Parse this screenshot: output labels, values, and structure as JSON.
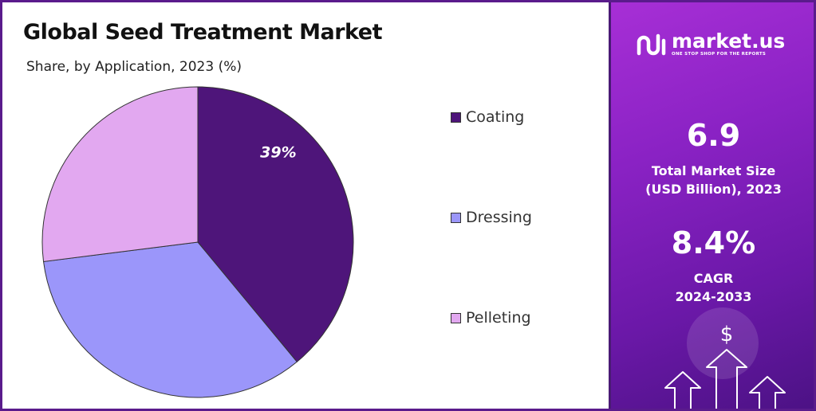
{
  "chart_data": {
    "type": "pie",
    "title": "Global Seed Treatment Market",
    "subtitle": "Share, by Application, 2023 (%)",
    "categories": [
      "Coating",
      "Dressing",
      "Pelleting"
    ],
    "values": [
      39,
      34,
      27
    ],
    "colors": [
      "#4e157a",
      "#9b96fa",
      "#e2a8f0"
    ],
    "data_labels": [
      "39%",
      "",
      ""
    ],
    "legend_position": "right",
    "legend": [
      "Coating",
      "Dressing",
      "Pelleting"
    ]
  },
  "brand": {
    "name": "market.us",
    "tagline": "ONE STOP SHOP FOR THE REPORTS",
    "logo_icon": "market-us-logo-icon"
  },
  "stats": {
    "market_size_value": "6.9",
    "market_size_label": "Total Market Size\n(USD Billion), 2023",
    "cagr_value": "8.4%",
    "cagr_label": "CAGR\n2024-2033"
  },
  "decor": {
    "dollar_symbol": "$",
    "accent_colors": [
      "#a72fd6",
      "#4c1285"
    ]
  }
}
